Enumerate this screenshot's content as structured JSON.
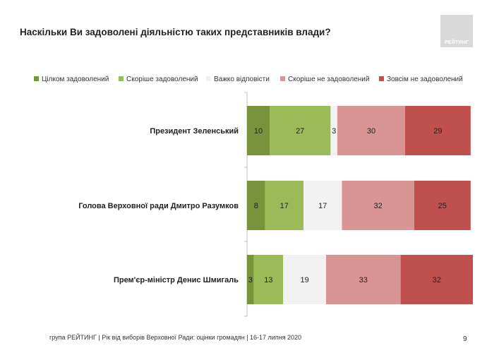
{
  "header": {
    "title": "Наскільки Ви задоволені діяльністю таких представників влади?",
    "logo_text": "РЕЙТИНГ"
  },
  "footer": {
    "source": "група РЕЙТИНГ | Рік від виборів Верховної Ради: оцінки громадян | 16-17 липня 2020",
    "page_number": "9"
  },
  "chart_data": {
    "type": "bar",
    "orientation": "horizontal",
    "stacked": true,
    "unit": "percent",
    "title": "Наскільки Ви задоволені діяльністю таких представників влади?",
    "legend_position": "top",
    "grid": false,
    "xlim": [
      0,
      100
    ],
    "categories": [
      "Президент Зеленський",
      "Голова Верховної ради Дмитро Разумков",
      "Прем'єр-міністр Денис Шмигаль"
    ],
    "series": [
      {
        "name": "Цілком задоволений",
        "color": "#77933c",
        "values": [
          10,
          8,
          3
        ]
      },
      {
        "name": "Скоріше задоволений",
        "color": "#9bbb59",
        "values": [
          27,
          17,
          13
        ]
      },
      {
        "name": "Важко відповісти",
        "color": "#f2f2f2",
        "values": [
          3,
          17,
          19
        ]
      },
      {
        "name": "Скоріше не задоволений",
        "color": "#d99594",
        "values": [
          30,
          32,
          33
        ]
      },
      {
        "name": "Зовсім не задоволений",
        "color": "#c0504d",
        "values": [
          29,
          25,
          32
        ]
      }
    ]
  }
}
